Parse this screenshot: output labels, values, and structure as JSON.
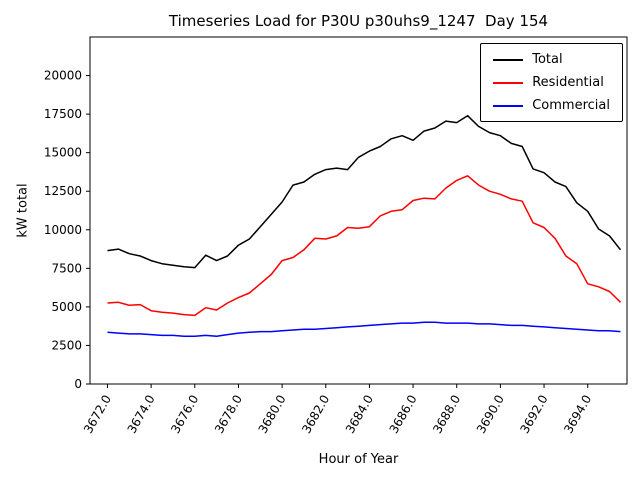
{
  "chart_data": {
    "type": "line",
    "title": "Timeseries Load for P30U p30uhs9_1247  Day 154",
    "xlabel": "Hour of Year",
    "ylabel": "kW total",
    "grid": false,
    "legend_position": "upper right",
    "xlim": [
      3671.2,
      3695.8
    ],
    "ylim": [
      0,
      22500
    ],
    "x_ticks": [
      3672,
      3674,
      3676,
      3678,
      3680,
      3682,
      3684,
      3686,
      3688,
      3690,
      3692,
      3694
    ],
    "x_tick_labels": [
      "3672.0",
      "3674.0",
      "3676.0",
      "3678.0",
      "3680.0",
      "3682.0",
      "3684.0",
      "3686.0",
      "3688.0",
      "3690.0",
      "3692.0",
      "3694.0"
    ],
    "y_ticks": [
      0,
      2500,
      5000,
      7500,
      10000,
      12500,
      15000,
      17500,
      20000
    ],
    "y_tick_labels": [
      "0",
      "2500",
      "5000",
      "7500",
      "10000",
      "12500",
      "15000",
      "17500",
      "20000"
    ],
    "x": [
      3672.0,
      3672.5,
      3673.0,
      3673.5,
      3674.0,
      3674.5,
      3675.0,
      3675.5,
      3676.0,
      3676.5,
      3677.0,
      3677.5,
      3678.0,
      3678.5,
      3679.0,
      3679.5,
      3680.0,
      3680.5,
      3681.0,
      3681.5,
      3682.0,
      3682.5,
      3683.0,
      3683.5,
      3684.0,
      3684.5,
      3685.0,
      3685.5,
      3686.0,
      3686.5,
      3687.0,
      3687.5,
      3688.0,
      3688.5,
      3689.0,
      3689.5,
      3690.0,
      3690.5,
      3691.0,
      3691.5,
      3692.0,
      3692.5,
      3693.0,
      3693.5,
      3694.0,
      3694.5,
      3695.0,
      3695.5
    ],
    "series": [
      {
        "name": "Total",
        "color": "#000000",
        "values": [
          8650,
          8750,
          8450,
          8300,
          8000,
          7800,
          7700,
          7600,
          7550,
          8350,
          8000,
          8300,
          9000,
          9400,
          10200,
          11000,
          11800,
          12900,
          13100,
          13600,
          13900,
          14000,
          13900,
          14700,
          15100,
          15400,
          15900,
          16100,
          15800,
          16400,
          16600,
          17050,
          16950,
          17400,
          16700,
          16300,
          16100,
          15600,
          15400,
          13950,
          13700,
          13100,
          12800,
          11750,
          11200,
          10050,
          9600,
          8700
        ]
      },
      {
        "name": "Residential",
        "color": "#ff0000",
        "values": [
          5250,
          5300,
          5100,
          5150,
          4750,
          4650,
          4600,
          4500,
          4450,
          4950,
          4800,
          5250,
          5600,
          5900,
          6500,
          7100,
          8000,
          8200,
          8700,
          9450,
          9400,
          9600,
          10150,
          10100,
          10200,
          10900,
          11200,
          11300,
          11900,
          12050,
          12000,
          12700,
          13200,
          13500,
          12900,
          12500,
          12300,
          12000,
          11850,
          10450,
          10150,
          9450,
          8300,
          7800,
          6500,
          6300,
          6000,
          5300
        ]
      },
      {
        "name": "Commercial",
        "color": "#0000ff",
        "values": [
          3350,
          3300,
          3250,
          3250,
          3200,
          3150,
          3150,
          3100,
          3100,
          3150,
          3100,
          3200,
          3300,
          3350,
          3400,
          3400,
          3450,
          3500,
          3550,
          3550,
          3600,
          3650,
          3700,
          3750,
          3800,
          3850,
          3900,
          3950,
          3950,
          4000,
          4000,
          3950,
          3950,
          3950,
          3900,
          3900,
          3850,
          3800,
          3800,
          3750,
          3700,
          3650,
          3600,
          3550,
          3500,
          3450,
          3450,
          3400
        ]
      }
    ]
  }
}
